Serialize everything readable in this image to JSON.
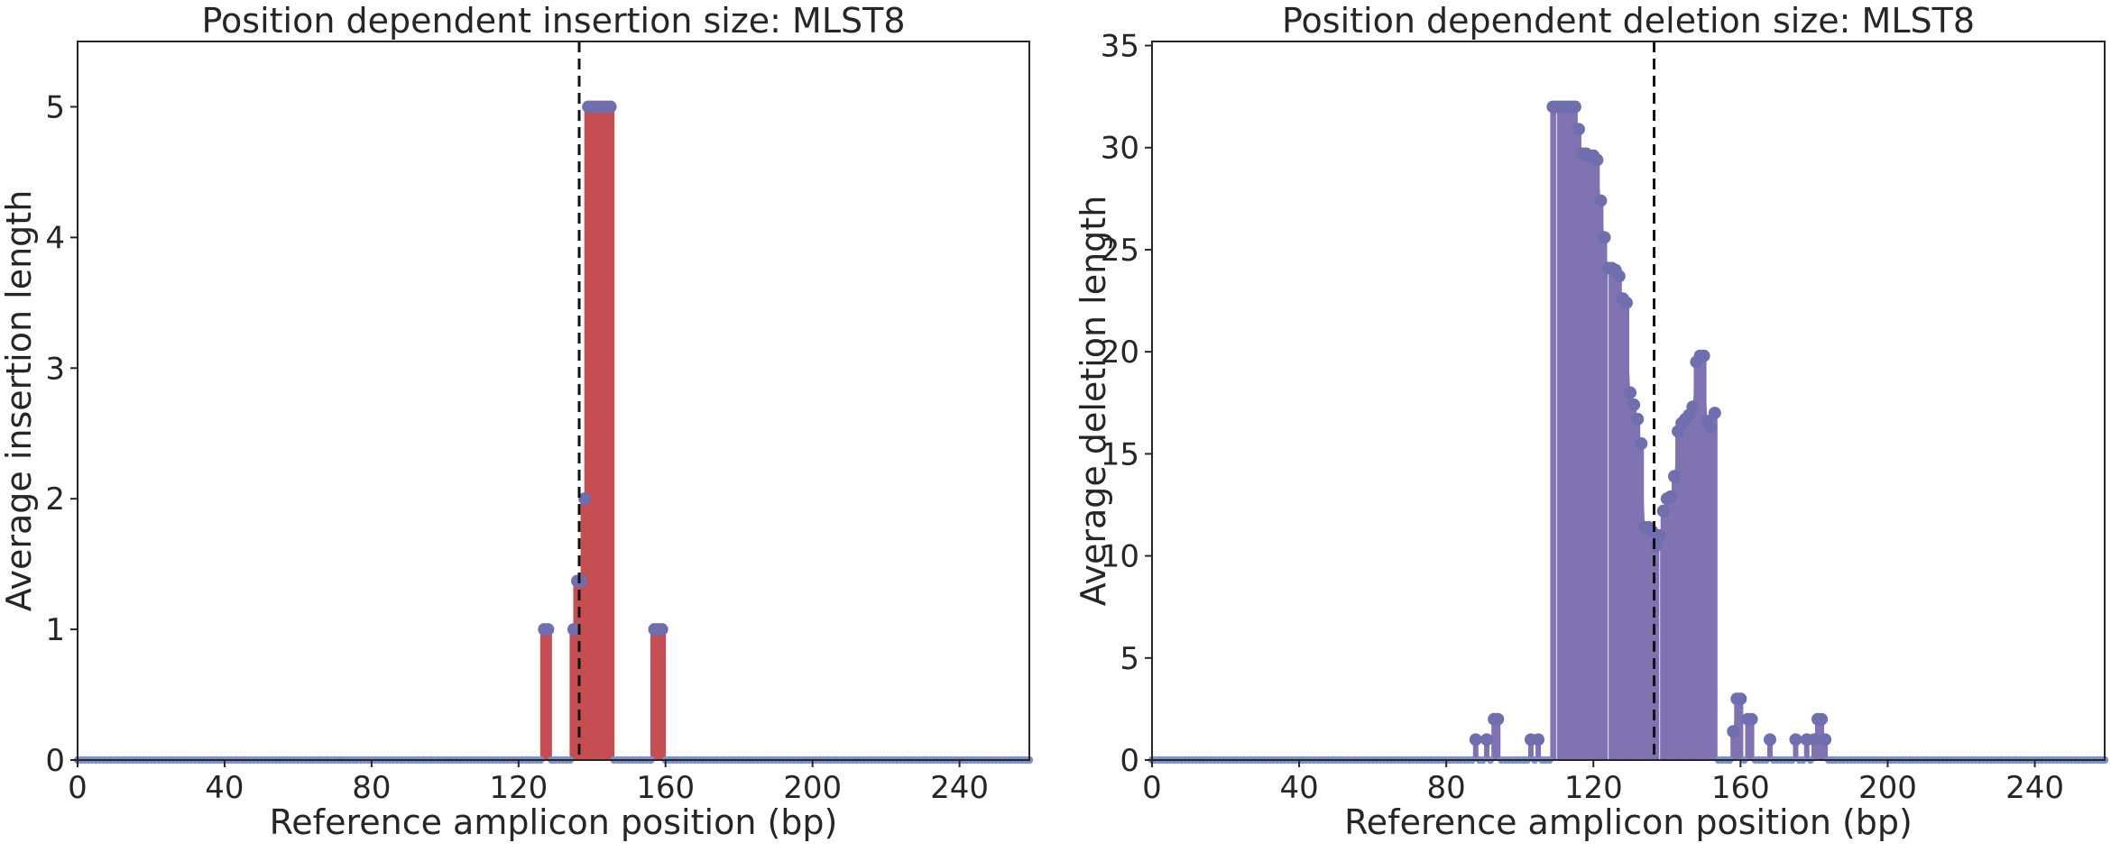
{
  "colors": {
    "insertion": "#c44e52",
    "deletion": "#8172b2",
    "marker": "#6f6fb0",
    "baseline_marker": "#7b8fc8",
    "frame": "#262626",
    "cut_line": "#111111"
  },
  "chart_data": [
    {
      "type": "bar",
      "title": "Position dependent insertion size: MLST8",
      "xlabel": "Reference amplicon position (bp)",
      "ylabel": "Average insertion length",
      "xlim": [
        0,
        259
      ],
      "ylim": [
        0,
        5.5
      ],
      "xticks": [
        0,
        40,
        80,
        120,
        160,
        200,
        240
      ],
      "yticks": [
        0,
        1,
        2,
        3,
        4,
        5
      ],
      "cut_site": 136.5,
      "grid": false,
      "points": [
        [
          127,
          1
        ],
        [
          128,
          1
        ],
        [
          135,
          1
        ],
        [
          136,
          1.37
        ],
        [
          137,
          1.37
        ],
        [
          138,
          2
        ],
        [
          139,
          5
        ],
        [
          140,
          5
        ],
        [
          141,
          5
        ],
        [
          142,
          5
        ],
        [
          143,
          5
        ],
        [
          144,
          5
        ],
        [
          145,
          5
        ],
        [
          157,
          1
        ],
        [
          158,
          1
        ],
        [
          159,
          1
        ]
      ]
    },
    {
      "type": "bar",
      "title": "Position dependent deletion size: MLST8",
      "xlabel": "Reference amplicon position (bp)",
      "ylabel": "Average deletion length",
      "xlim": [
        0,
        259
      ],
      "ylim": [
        0,
        35.2
      ],
      "xticks": [
        0,
        40,
        80,
        120,
        160,
        200,
        240
      ],
      "yticks": [
        0,
        5,
        10,
        15,
        20,
        25,
        30,
        35
      ],
      "cut_site": 136.5,
      "grid": false,
      "points": [
        [
          88,
          1
        ],
        [
          91,
          1
        ],
        [
          93,
          2
        ],
        [
          94,
          2
        ],
        [
          103,
          1
        ],
        [
          105,
          1
        ],
        [
          109,
          32
        ],
        [
          110,
          32
        ],
        [
          111,
          32
        ],
        [
          112,
          32
        ],
        [
          113,
          32
        ],
        [
          114,
          32
        ],
        [
          115,
          32
        ],
        [
          116,
          30.9
        ],
        [
          117,
          29.7
        ],
        [
          118,
          29.7
        ],
        [
          119,
          29.6
        ],
        [
          120,
          29.6
        ],
        [
          121,
          29.4
        ],
        [
          122,
          27.4
        ],
        [
          123,
          25.6
        ],
        [
          124,
          24.1
        ],
        [
          125,
          24.1
        ],
        [
          126,
          24
        ],
        [
          127,
          23.7
        ],
        [
          128,
          22.6
        ],
        [
          129,
          22.4
        ],
        [
          130,
          18
        ],
        [
          131,
          17.4
        ],
        [
          132,
          16.7
        ],
        [
          133,
          15.5
        ],
        [
          134,
          11.4
        ],
        [
          135,
          11.4
        ],
        [
          136,
          11.2
        ],
        [
          137,
          10.5
        ],
        [
          138,
          11
        ],
        [
          139,
          12.2
        ],
        [
          140,
          12.8
        ],
        [
          141,
          12.9
        ],
        [
          142,
          13.9
        ],
        [
          143,
          16.1
        ],
        [
          144,
          16.5
        ],
        [
          145,
          16.7
        ],
        [
          146,
          16.9
        ],
        [
          147,
          17.3
        ],
        [
          148,
          19.5
        ],
        [
          149,
          19.8
        ],
        [
          150,
          19.8
        ],
        [
          151,
          16.6
        ],
        [
          152,
          16.3
        ],
        [
          153,
          17
        ],
        [
          158,
          1.4
        ],
        [
          159,
          3
        ],
        [
          160,
          3
        ],
        [
          162,
          2
        ],
        [
          163,
          2
        ],
        [
          168,
          1
        ],
        [
          175,
          1
        ],
        [
          178,
          1
        ],
        [
          180,
          1
        ],
        [
          181,
          2
        ],
        [
          182,
          2
        ],
        [
          183,
          1
        ]
      ]
    }
  ]
}
